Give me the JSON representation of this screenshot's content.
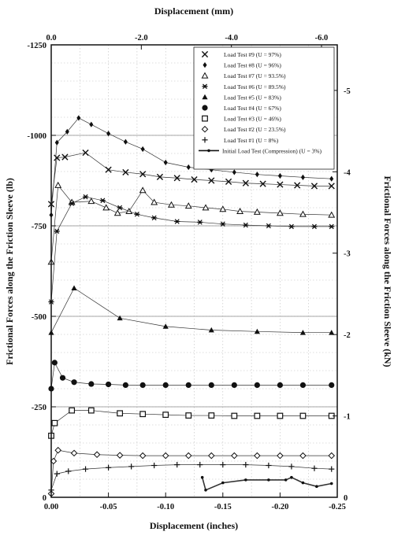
{
  "chart_data": {
    "type": "line",
    "xlabel_bottom": "Displacement (inches)",
    "xlabel_top": "Displacement (mm)",
    "ylabel_left": "Frictional Forces along the Friction Sleeve (lb)",
    "ylabel_right": "Frictional Forces along the Friction Sleeve (kN)",
    "xlim": [
      0,
      -0.25
    ],
    "ylim": [
      0,
      -1250
    ],
    "xlim_top": [
      0,
      -6.35
    ],
    "ylim_right": [
      0,
      -5.56
    ],
    "x_ticks": [
      {
        "value": 0,
        "label": "0.00"
      },
      {
        "value": -0.05,
        "label": "-0.05"
      },
      {
        "value": -0.1,
        "label": "-0.10"
      },
      {
        "value": -0.15,
        "label": "-0.15"
      },
      {
        "value": -0.2,
        "label": "-0.20"
      },
      {
        "value": -0.25,
        "label": "-0.25"
      }
    ],
    "y_ticks": [
      {
        "value": 0,
        "label": "0"
      },
      {
        "value": -250,
        "label": "-250"
      },
      {
        "value": -500,
        "label": "-500"
      },
      {
        "value": -750,
        "label": "-750"
      },
      {
        "value": -1000,
        "label": "-1000"
      },
      {
        "value": -1250,
        "label": "-1250"
      }
    ],
    "x_ticks_top": [
      {
        "value": 0,
        "label": "0.0"
      },
      {
        "value": -2.0,
        "label": "-2.0"
      },
      {
        "value": -4.0,
        "label": "-4.0"
      },
      {
        "value": -6.0,
        "label": "-6.0"
      }
    ],
    "y_ticks_right": [
      {
        "value": 0,
        "label": "0"
      },
      {
        "value": -1,
        "label": "-1"
      },
      {
        "value": -2,
        "label": "-2"
      },
      {
        "value": -3,
        "label": "-3"
      },
      {
        "value": -4,
        "label": "-4"
      },
      {
        "value": -5,
        "label": "-5"
      }
    ],
    "grid": true,
    "legend_position": "top-right",
    "series": [
      {
        "name": "Load Test #9 (U = 97%)",
        "marker": "x",
        "x": [
          0,
          -0.005,
          -0.012,
          -0.03,
          -0.05,
          -0.065,
          -0.08,
          -0.095,
          -0.11,
          -0.125,
          -0.14,
          -0.155,
          -0.17,
          -0.185,
          -0.2,
          -0.215,
          -0.23,
          -0.245
        ],
        "y": [
          -810,
          -938,
          -940,
          -952,
          -905,
          -898,
          -893,
          -885,
          -882,
          -878,
          -875,
          -872,
          -868,
          -866,
          -864,
          -862,
          -860,
          -860
        ]
      },
      {
        "name": "Load Test #8 (U = 96%)",
        "marker": "diamond-filled",
        "x": [
          0,
          -0.005,
          -0.014,
          -0.024,
          -0.035,
          -0.05,
          -0.065,
          -0.08,
          -0.1,
          -0.12,
          -0.14,
          -0.16,
          -0.18,
          -0.2,
          -0.22,
          -0.245
        ],
        "y": [
          -780,
          -980,
          -1010,
          -1048,
          -1030,
          -1005,
          -982,
          -962,
          -925,
          -912,
          -905,
          -898,
          -892,
          -888,
          -884,
          -880
        ]
      },
      {
        "name": "Load Test #7 (U = 93.5%)",
        "marker": "triangle-open",
        "x": [
          0,
          -0.006,
          -0.018,
          -0.035,
          -0.048,
          -0.058,
          -0.068,
          -0.08,
          -0.09,
          -0.105,
          -0.12,
          -0.135,
          -0.15,
          -0.165,
          -0.18,
          -0.2,
          -0.22,
          -0.245
        ],
        "y": [
          -650,
          -862,
          -815,
          -818,
          -800,
          -785,
          -790,
          -848,
          -815,
          -808,
          -805,
          -800,
          -796,
          -790,
          -788,
          -785,
          -782,
          -780
        ]
      },
      {
        "name": "Load Test #6 (U = 89.5%)",
        "marker": "asterisk",
        "x": [
          0,
          -0.005,
          -0.018,
          -0.03,
          -0.045,
          -0.06,
          -0.075,
          -0.09,
          -0.11,
          -0.13,
          -0.15,
          -0.17,
          -0.19,
          -0.21,
          -0.23,
          -0.245
        ],
        "y": [
          -540,
          -735,
          -812,
          -830,
          -820,
          -800,
          -782,
          -772,
          -762,
          -760,
          -755,
          -752,
          -750,
          -748,
          -748,
          -748
        ]
      },
      {
        "name": "Load Test #5 (U = 83%)",
        "marker": "triangle-filled",
        "x": [
          0,
          -0.02,
          -0.06,
          -0.1,
          -0.14,
          -0.18,
          -0.22,
          -0.245
        ],
        "y": [
          -455,
          -578,
          -495,
          -472,
          -462,
          -458,
          -455,
          -455
        ]
      },
      {
        "name": "Load Test #4 (U = 67%)",
        "marker": "circle-filled",
        "x": [
          0,
          -0.003,
          -0.01,
          -0.02,
          -0.035,
          -0.05,
          -0.065,
          -0.08,
          -0.1,
          -0.12,
          -0.14,
          -0.16,
          -0.18,
          -0.2,
          -0.22,
          -0.245
        ],
        "y": [
          -300,
          -372,
          -330,
          -318,
          -313,
          -312,
          -310,
          -310,
          -310,
          -310,
          -310,
          -310,
          -310,
          -310,
          -310,
          -310
        ]
      },
      {
        "name": "Load Test #3 (U = 46%)",
        "marker": "square-open",
        "x": [
          0,
          -0.003,
          -0.018,
          -0.035,
          -0.06,
          -0.08,
          -0.1,
          -0.12,
          -0.14,
          -0.16,
          -0.18,
          -0.2,
          -0.22,
          -0.245
        ],
        "y": [
          -170,
          -205,
          -240,
          -240,
          -232,
          -230,
          -228,
          -226,
          -226,
          -225,
          -225,
          -225,
          -225,
          -225
        ]
      },
      {
        "name": "Load Test #2 (U = 23.5%)",
        "marker": "diamond-open",
        "x": [
          0,
          -0.002,
          -0.006,
          -0.02,
          -0.04,
          -0.06,
          -0.08,
          -0.1,
          -0.12,
          -0.14,
          -0.16,
          -0.18,
          -0.2,
          -0.22,
          -0.245
        ],
        "y": [
          -10,
          -100,
          -130,
          -122,
          -118,
          -116,
          -115,
          -115,
          -115,
          -115,
          -115,
          -115,
          -115,
          -115,
          -115
        ]
      },
      {
        "name": "Load Test #1 (U = 8%)",
        "marker": "plus",
        "x": [
          0,
          -0.005,
          -0.015,
          -0.03,
          -0.05,
          -0.07,
          -0.09,
          -0.11,
          -0.13,
          -0.15,
          -0.17,
          -0.19,
          -0.21,
          -0.23,
          -0.245
        ],
        "y": [
          -20,
          -65,
          -72,
          -78,
          -82,
          -85,
          -88,
          -90,
          -90,
          -90,
          -90,
          -88,
          -85,
          -80,
          -78
        ]
      },
      {
        "name": "Initial Load Test (Compression) (U = 3%)",
        "marker": "dot",
        "x": [
          -0.132,
          -0.135,
          -0.15,
          -0.17,
          -0.19,
          -0.205,
          -0.21,
          -0.22,
          -0.232,
          -0.245
        ],
        "y": [
          -55,
          -20,
          -40,
          -48,
          -48,
          -48,
          -55,
          -40,
          -30,
          -38
        ]
      }
    ]
  }
}
